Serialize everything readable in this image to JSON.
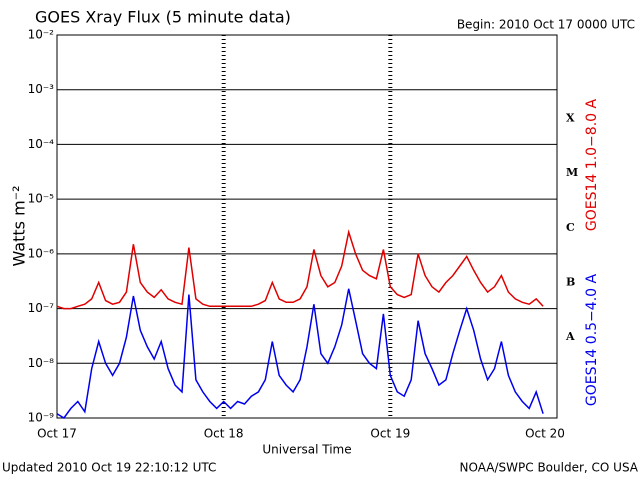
{
  "chart_data": {
    "type": "line",
    "title": "GOES Xray Flux (5 minute data)",
    "subtitle": "Begin:  2010 Oct 17 0000 UTC",
    "x_label": "Universal Time",
    "y_label": "Watts m⁻²",
    "footer_left": "Updated 2010 Oct 19 22:10:12 UTC",
    "footer_right": "NOAA/SWPC Boulder, CO USA",
    "flare_classes": [
      {
        "label": "X",
        "value": 0.0003
      },
      {
        "label": "M",
        "value": 3e-05
      },
      {
        "label": "C",
        "value": 3e-06
      },
      {
        "label": "B",
        "value": 3e-07
      },
      {
        "label": "A",
        "value": 3e-08
      }
    ],
    "log_y": true,
    "grid": true,
    "xlim": [
      0,
      72
    ],
    "xticks": [
      {
        "value": 0,
        "label": "Oct 17"
      },
      {
        "value": 24,
        "label": "Oct 18"
      },
      {
        "value": 48,
        "label": "Oct 19"
      },
      {
        "value": 72,
        "label": "Oct 20"
      }
    ],
    "ylim": [
      1e-09,
      0.01
    ],
    "yticks": [
      {
        "value": 1e-09,
        "label": "10⁻⁹"
      },
      {
        "value": 1e-08,
        "label": "10⁻⁸"
      },
      {
        "value": 1e-07,
        "label": "10⁻⁷"
      },
      {
        "value": 1e-06,
        "label": "10⁻⁶"
      },
      {
        "value": 1e-05,
        "label": "10⁻⁵"
      },
      {
        "value": 0.0001,
        "label": "10⁻⁴"
      },
      {
        "value": 0.001,
        "label": "10⁻³"
      },
      {
        "value": 0.01,
        "label": "10⁻²"
      }
    ],
    "x": [
      0,
      1,
      2,
      3,
      4,
      5,
      6,
      7,
      8,
      9,
      10,
      11,
      12,
      13,
      14,
      15,
      16,
      17,
      18,
      19,
      20,
      21,
      22,
      23,
      24,
      25,
      26,
      27,
      28,
      29,
      30,
      31,
      32,
      33,
      34,
      35,
      36,
      37,
      38,
      39,
      40,
      41,
      42,
      43,
      44,
      45,
      46,
      47,
      48,
      49,
      50,
      51,
      52,
      53,
      54,
      55,
      56,
      57,
      58,
      59,
      60,
      61,
      62,
      63,
      64,
      65,
      66,
      67,
      68,
      69,
      70
    ],
    "series": [
      {
        "name": "GOES14 1.0−8.0 A",
        "color": "#e00000",
        "values": [
          1.1e-07,
          1e-07,
          1e-07,
          1.1e-07,
          1.2e-07,
          1.5e-07,
          3e-07,
          1.4e-07,
          1.2e-07,
          1.3e-07,
          2e-07,
          1.5e-06,
          3e-07,
          2e-07,
          1.6e-07,
          2.2e-07,
          1.5e-07,
          1.3e-07,
          1.2e-07,
          1.3e-06,
          1.5e-07,
          1.2e-07,
          1.1e-07,
          1.1e-07,
          1.1e-07,
          1.1e-07,
          1.1e-07,
          1.1e-07,
          1.1e-07,
          1.2e-07,
          1.4e-07,
          3e-07,
          1.5e-07,
          1.3e-07,
          1.3e-07,
          1.5e-07,
          2.5e-07,
          1.2e-06,
          4e-07,
          2.5e-07,
          3e-07,
          6e-07,
          2.5e-06,
          1e-06,
          5e-07,
          4e-07,
          3.5e-07,
          1.2e-06,
          2.5e-07,
          1.8e-07,
          1.6e-07,
          1.8e-07,
          1e-06,
          4e-07,
          2.5e-07,
          2e-07,
          3e-07,
          4e-07,
          6e-07,
          9e-07,
          5e-07,
          3e-07,
          2e-07,
          2.5e-07,
          4e-07,
          2e-07,
          1.5e-07,
          1.3e-07,
          1.2e-07,
          1.5e-07,
          1.1e-07
        ]
      },
      {
        "name": "GOES14 0.5−4.0 A",
        "color": "#0000ee",
        "values": [
          1.2e-09,
          1e-09,
          1.5e-09,
          2e-09,
          1.3e-09,
          8e-09,
          2.5e-08,
          1e-08,
          6e-09,
          1e-08,
          3e-08,
          1.7e-07,
          4e-08,
          2e-08,
          1.2e-08,
          2.5e-08,
          8e-09,
          4e-09,
          3e-09,
          1.8e-07,
          5e-09,
          3e-09,
          2e-09,
          1.5e-09,
          2e-09,
          1.5e-09,
          2e-09,
          1.8e-09,
          2.5e-09,
          3e-09,
          5e-09,
          2.5e-08,
          6e-09,
          4e-09,
          3e-09,
          5e-09,
          2e-08,
          1.2e-07,
          1.5e-08,
          1e-08,
          2e-08,
          5e-08,
          2.3e-07,
          6e-08,
          1.5e-08,
          1e-08,
          8e-09,
          8e-08,
          6e-09,
          3e-09,
          2.5e-09,
          5e-09,
          6e-08,
          1.5e-08,
          8e-09,
          4e-09,
          5e-09,
          1.5e-08,
          4e-08,
          1e-07,
          4e-08,
          1.2e-08,
          5e-09,
          8e-09,
          2.5e-08,
          6e-09,
          3e-09,
          2e-09,
          1.5e-09,
          3e-09,
          1.2e-09
        ]
      }
    ]
  }
}
